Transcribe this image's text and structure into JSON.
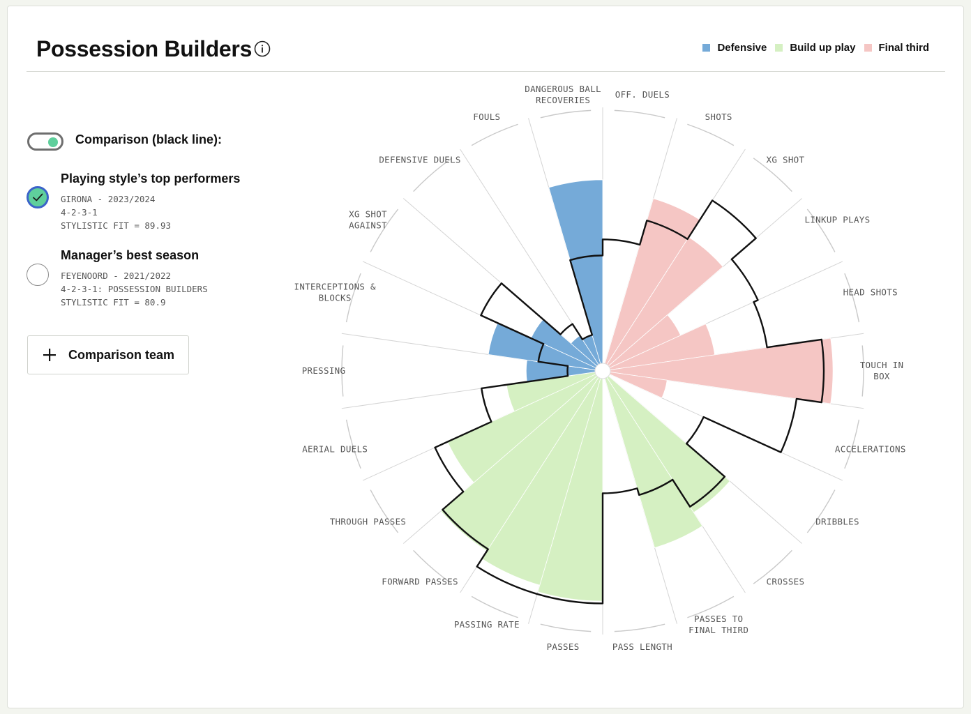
{
  "header": {
    "title": "Possession Builders",
    "info_icon": "info-icon"
  },
  "legend": [
    {
      "label": "Defensive",
      "color": "#75aad8"
    },
    {
      "label": "Build up play",
      "color": "#d5f0c2"
    },
    {
      "label": "Final third",
      "color": "#f5c6c4"
    }
  ],
  "comparison": {
    "toggle_on": true,
    "label": "Comparison (black line):"
  },
  "options": [
    {
      "title": "Playing style’s top performers",
      "line1": "GIRONA - 2023/2024",
      "line2": "4-2-3-1",
      "line3": "STYLISTIC FIT = 89.93",
      "selected": true
    },
    {
      "title": "Manager’s best season",
      "line1": "FEYENOORD - 2021/2022",
      "line2": "4-2-3-1: POSSESSION BUILDERS",
      "line3": "STYLISTIC FIT = 80.9",
      "selected": false
    }
  ],
  "add_button": {
    "label": "Comparison team"
  },
  "chart_data": {
    "type": "polar-bar",
    "scale_max": 100,
    "colors": {
      "Defensive": "#75aad8",
      "Build up play": "#d5f0c2",
      "Final third": "#f5c6c4",
      "comparison": "#111111"
    },
    "categories": [
      {
        "label": "OFF. DUELS",
        "group": "Final third",
        "value": 0,
        "comparison": 54
      },
      {
        "label": "SHOTS",
        "group": "Final third",
        "value": 75,
        "comparison": 65
      },
      {
        "label": "XG SHOT",
        "group": "Final third",
        "value": 66,
        "comparison": 85
      },
      {
        "label": "LINKUP PLAYS",
        "group": "Final third",
        "value": 34,
        "comparison": 71
      },
      {
        "label": "HEAD SHOTS",
        "group": "Final third",
        "value": 46,
        "comparison": 69
      },
      {
        "label": "TOUCH IN BOX",
        "group": "Final third",
        "value": 97,
        "comparison": 93
      },
      {
        "label": "ACCELERATIONS",
        "group": "Final third",
        "value": 25,
        "comparison": 82
      },
      {
        "label": "DRIBBLES",
        "group": "Build up play",
        "value": 0,
        "comparison": 45
      },
      {
        "label": "CROSSES",
        "group": "Build up play",
        "value": 70,
        "comparison": 67
      },
      {
        "label": "PASSES TO FINAL THIRD",
        "group": "Build up play",
        "value": 77,
        "comparison": 53
      },
      {
        "label": "PASS LENGTH",
        "group": "Build up play",
        "value": 0,
        "comparison": 50
      },
      {
        "label": "PASSES",
        "group": "Build up play",
        "value": 97,
        "comparison": 98
      },
      {
        "label": "PASSING RATE",
        "group": "Build up play",
        "value": 94,
        "comparison": 98
      },
      {
        "label": "FORWARD PASSES",
        "group": "Build up play",
        "value": 90,
        "comparison": 89
      },
      {
        "label": "THROUGH PASSES",
        "group": "Build up play",
        "value": 71,
        "comparison": 77
      },
      {
        "label": "AERIAL DUELS",
        "group": "Build up play",
        "value": 39,
        "comparison": 50
      },
      {
        "label": "PRESSING",
        "group": "Defensive",
        "value": 30,
        "comparison": 12
      },
      {
        "label": "INTERCEPTIONS & BLOCKS",
        "group": "Defensive",
        "value": 47,
        "comparison": 25
      },
      {
        "label": "XG SHOT AGAINST",
        "group": "Defensive",
        "value": 31,
        "comparison": 55
      },
      {
        "label": "DEFENSIVE DUELS",
        "group": "Defensive",
        "value": 15,
        "comparison": 21
      },
      {
        "label": "FOULS",
        "group": "Defensive",
        "value": 13,
        "comparison": 13
      },
      {
        "label": "DANGEROUS BALL RECOVERIES",
        "group": "Defensive",
        "value": 80,
        "comparison": 47
      }
    ]
  }
}
